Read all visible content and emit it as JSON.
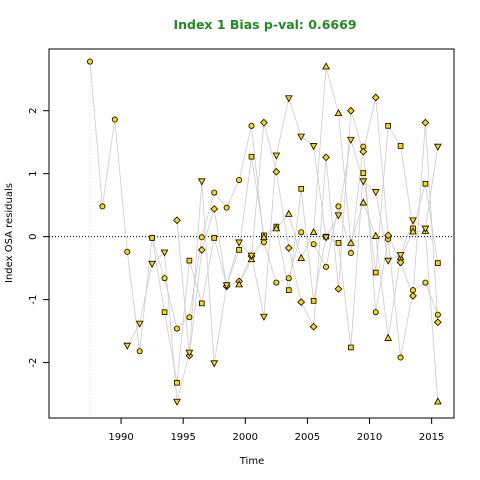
{
  "chart_data": {
    "type": "scatter",
    "title": "Index 1 Bias p-val: 0.6669",
    "xlabel": "Time",
    "ylabel": "Index OSA residuals",
    "xlim": [
      1984.2,
      2016.8
    ],
    "ylim": [
      -2.88,
      2.98
    ],
    "x_ticks": [
      1990,
      1995,
      2000,
      2005,
      2010,
      2015
    ],
    "y_ticks": [
      -2,
      -1,
      0,
      1,
      2
    ],
    "grid": false,
    "reference_line_y": 0,
    "reference_line_x": 1987.5,
    "colors": {
      "title": "#228B22",
      "marker_fill": "#FFD700",
      "marker_edge": "#000000",
      "connector": "#cccccc",
      "zero_line": "#000000",
      "box": "#000000"
    },
    "series": [
      {
        "marker": "circle",
        "x": [
          1987.5,
          1988.5,
          1989.5,
          1990.5,
          1991.5,
          1992.5,
          1993.5,
          1994.5,
          1995.5,
          1996.5,
          1997.5,
          1998.5,
          1999.5,
          2000.5,
          2001.5,
          2002.5,
          2003.5,
          2004.5,
          2005.5,
          2006.5,
          2007.5,
          2008.5,
          2009.5,
          2010.5,
          2011.5,
          2012.5,
          2013.5,
          2014.5,
          2015.5
        ],
        "y": [
          2.78,
          0.48,
          1.86,
          -0.24,
          -1.82,
          -0.02,
          -0.66,
          -1.46,
          -1.28,
          -0.01,
          0.7,
          0.46,
          0.9,
          1.76,
          -0.09,
          -0.73,
          -0.66,
          0.07,
          -0.12,
          -0.48,
          0.48,
          -0.26,
          1.43,
          -1.2,
          -0.04,
          -1.92,
          -0.85,
          -0.73,
          -1.24
        ]
      },
      {
        "marker": "square",
        "x": [
          1992.5,
          1993.5,
          1994.5,
          1995.5,
          1996.5,
          1997.5,
          1998.5,
          1999.5,
          2000.5,
          2001.5,
          2002.5,
          2003.5,
          2004.5,
          2005.5,
          2006.5,
          2007.5,
          2008.5,
          2009.5,
          2010.5,
          2011.5,
          2012.5,
          2013.5,
          2014.5,
          2015.5
        ],
        "y": [
          -0.02,
          -1.2,
          -2.32,
          -0.38,
          -1.06,
          -0.02,
          -0.77,
          -0.21,
          1.27,
          0.02,
          0.16,
          -0.85,
          0.76,
          -1.02,
          0.0,
          -0.1,
          -1.76,
          1.01,
          -0.57,
          1.76,
          1.44,
          0.13,
          0.84,
          -0.42
        ]
      },
      {
        "marker": "diamond",
        "x": [
          1994.5,
          1995.5,
          1996.5,
          1997.5,
          1998.5,
          1999.5,
          2000.5,
          2001.5,
          2002.5,
          2003.5,
          2004.5,
          2005.5,
          2006.5,
          2007.5,
          2008.5,
          2009.5,
          2010.5,
          2011.5,
          2012.5,
          2013.5,
          2014.5,
          2015.5
        ],
        "y": [
          0.26,
          -1.89,
          -0.21,
          0.44,
          -0.79,
          -0.71,
          -0.31,
          1.81,
          1.03,
          -0.18,
          -1.04,
          -1.43,
          1.26,
          -0.83,
          2.0,
          1.35,
          2.21,
          0.02,
          -0.41,
          -0.94,
          1.81,
          -1.36
        ]
      },
      {
        "marker": "triangle-up",
        "x": [
          1999.5,
          2000.5,
          2001.5,
          2002.5,
          2003.5,
          2004.5,
          2005.5,
          2006.5,
          2007.5,
          2008.5,
          2009.5,
          2010.5,
          2011.5,
          2012.5,
          2013.5,
          2014.5,
          2015.5
        ],
        "y": [
          -0.76,
          -0.36,
          -0.01,
          0.13,
          0.36,
          -0.34,
          0.07,
          2.7,
          1.96,
          -0.1,
          0.54,
          0.01,
          -1.61,
          -0.33,
          0.08,
          0.09,
          -2.62
        ]
      },
      {
        "marker": "triangle-down",
        "x": [
          1990.5,
          1991.5,
          1992.5,
          1993.5,
          1994.5,
          1995.5,
          1996.5,
          1997.5,
          1998.5,
          1999.5,
          2000.5,
          2001.5,
          2002.5,
          2003.5,
          2004.5,
          2005.5,
          2006.5,
          2007.5,
          2008.5,
          2009.5,
          2010.5,
          2011.5,
          2012.5,
          2013.5,
          2014.5,
          2015.5
        ],
        "y": [
          -1.73,
          -1.38,
          -0.43,
          -0.25,
          -2.62,
          -1.84,
          0.88,
          -2.01,
          -0.77,
          -0.09,
          -0.3,
          -1.27,
          1.29,
          2.2,
          1.59,
          1.44,
          -0.01,
          0.34,
          1.54,
          0.88,
          0.71,
          -0.38,
          -0.29,
          0.26,
          0.13,
          1.43
        ]
      }
    ]
  }
}
